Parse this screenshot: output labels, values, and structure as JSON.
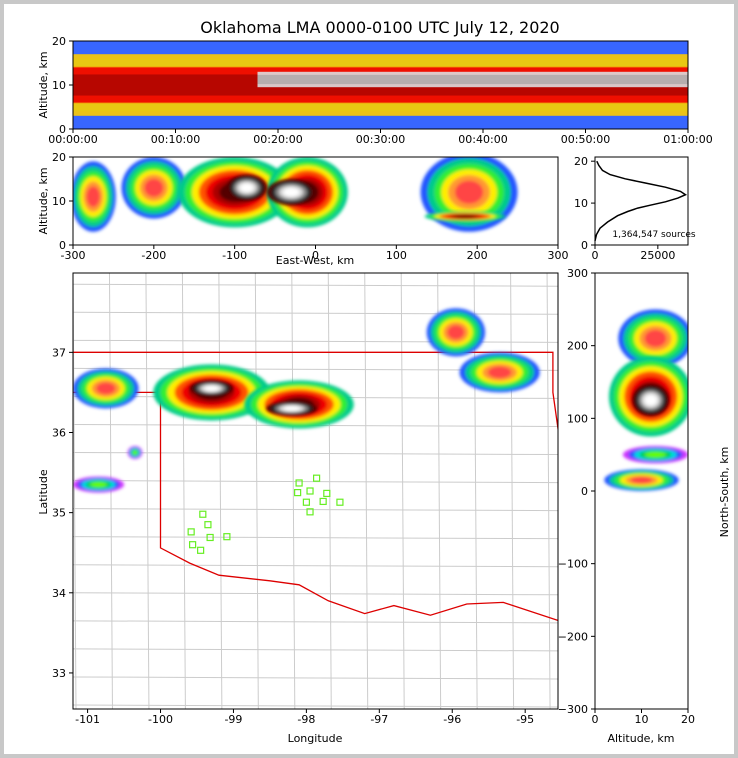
{
  "chart_data": [
    {
      "panel": "altitude-vs-time",
      "type": "heatmap",
      "title": "Oklahoma LMA 0000-0100 UTC July 12, 2020",
      "xlabel": "",
      "ylabel": "Altitude, km",
      "x_ticks": [
        "00:00:00",
        "00:10:00",
        "00:20:00",
        "00:30:00",
        "00:40:00",
        "00:50:00",
        "01:00:00"
      ],
      "y_ticks": [
        "0",
        "10",
        "20"
      ],
      "ylim": [
        0,
        20
      ],
      "bands": [
        {
          "ymin": 0,
          "ymax": 20,
          "level": "low"
        },
        {
          "ymin": 3,
          "ymax": 17,
          "level": "medium"
        },
        {
          "ymin": 6,
          "ymax": 14,
          "level": "high"
        },
        {
          "ymin": 9.5,
          "ymax": 13,
          "level": "peak",
          "from_time_frac": 0.3
        }
      ]
    },
    {
      "panel": "altitude-vs-east-west",
      "type": "heatmap",
      "xlabel": "East-West, km",
      "ylabel": "Altitude, km",
      "x_ticks": [
        "-300",
        "-200",
        "-100",
        "0",
        "100",
        "200",
        "300"
      ],
      "y_ticks": [
        "0",
        "10",
        "20"
      ],
      "xlim": [
        -300,
        300
      ],
      "ylim": [
        0,
        20
      ],
      "cells": [
        {
          "x": -275,
          "y": 11,
          "rx": 28,
          "ry": 8,
          "level": "medium"
        },
        {
          "x": -200,
          "y": 13,
          "rx": 40,
          "ry": 7,
          "level": "medium"
        },
        {
          "x": -100,
          "y": 12,
          "rx": 70,
          "ry": 8,
          "level": "high"
        },
        {
          "x": -10,
          "y": 12,
          "rx": 50,
          "ry": 8,
          "level": "high"
        },
        {
          "x": -85,
          "y": 13,
          "rx": 25,
          "ry": 3,
          "level": "peak"
        },
        {
          "x": -30,
          "y": 12,
          "rx": 30,
          "ry": 3,
          "level": "peak"
        },
        {
          "x": 190,
          "y": 12,
          "rx": 60,
          "ry": 9,
          "level": "medium"
        },
        {
          "x": 185,
          "y": 6.5,
          "rx": 50,
          "ry": 1.2,
          "level": "high"
        }
      ]
    },
    {
      "panel": "source-count-vs-altitude",
      "type": "line",
      "x_ticks": [
        "0",
        "25000"
      ],
      "y_ticks": [
        "0",
        "10",
        "20"
      ],
      "xlim": [
        0,
        37000
      ],
      "ylim": [
        0,
        21
      ],
      "annotation": "1,364,547 sources",
      "x": [
        0,
        600,
        2000,
        5000,
        9000,
        13000,
        17000,
        22000,
        28000,
        33000,
        36000,
        34000,
        28000,
        20000,
        12000,
        6000,
        3000,
        1500,
        700
      ],
      "y": [
        1,
        2.5,
        4,
        5.5,
        7,
        8,
        8.8,
        9.5,
        10.3,
        11.2,
        12,
        12.8,
        13.8,
        14.8,
        15.8,
        16.8,
        17.8,
        19,
        20
      ]
    },
    {
      "panel": "plan-view-map",
      "type": "heatmap",
      "xlabel": "Longitude",
      "ylabel": "Latitude",
      "x_ticks": [
        "-101",
        "-100",
        "-99",
        "-98",
        "-97",
        "-96",
        "-95"
      ],
      "y_ticks": [
        "33",
        "34",
        "35",
        "36",
        "37"
      ],
      "xlim": [
        -101.2,
        -94.55
      ],
      "ylim": [
        32.55,
        37.99
      ],
      "cells": [
        {
          "x": -100.75,
          "y": 36.55,
          "rx": 0.45,
          "ry": 0.25,
          "level": "medium"
        },
        {
          "x": -99.3,
          "y": 36.5,
          "rx": 0.8,
          "ry": 0.35,
          "level": "high"
        },
        {
          "x": -98.1,
          "y": 36.35,
          "rx": 0.75,
          "ry": 0.3,
          "level": "high"
        },
        {
          "x": -99.3,
          "y": 36.55,
          "rx": 0.3,
          "ry": 0.1,
          "level": "peak"
        },
        {
          "x": -98.2,
          "y": 36.3,
          "rx": 0.35,
          "ry": 0.09,
          "level": "peak"
        },
        {
          "x": -95.95,
          "y": 37.25,
          "rx": 0.4,
          "ry": 0.3,
          "level": "medium"
        },
        {
          "x": -95.35,
          "y": 36.75,
          "rx": 0.55,
          "ry": 0.25,
          "level": "medium"
        },
        {
          "x": -100.85,
          "y": 35.35,
          "rx": 0.35,
          "ry": 0.1,
          "level": "low"
        },
        {
          "x": -100.35,
          "y": 35.75,
          "rx": 0.1,
          "ry": 0.08,
          "level": "low"
        }
      ],
      "stations": [
        {
          "lon": -99.42,
          "lat": 34.98
        },
        {
          "lon": -99.35,
          "lat": 34.85
        },
        {
          "lon": -99.58,
          "lat": 34.76
        },
        {
          "lon": -99.32,
          "lat": 34.69
        },
        {
          "lon": -99.56,
          "lat": 34.6
        },
        {
          "lon": -99.45,
          "lat": 34.53
        },
        {
          "lon": -99.09,
          "lat": 34.7
        },
        {
          "lon": -98.1,
          "lat": 35.37
        },
        {
          "lon": -97.86,
          "lat": 35.43
        },
        {
          "lon": -98.12,
          "lat": 35.25
        },
        {
          "lon": -97.95,
          "lat": 35.27
        },
        {
          "lon": -97.72,
          "lat": 35.24
        },
        {
          "lon": -98.0,
          "lat": 35.13
        },
        {
          "lon": -97.77,
          "lat": 35.14
        },
        {
          "lon": -97.54,
          "lat": 35.13
        },
        {
          "lon": -97.95,
          "lat": 35.01
        }
      ]
    },
    {
      "panel": "north-south-vs-altitude",
      "type": "heatmap",
      "xlabel": "Altitude, km",
      "ylabel": "North-South, km",
      "x_ticks": [
        "0",
        "10",
        "20"
      ],
      "y_ticks": [
        "300",
        "200",
        "100",
        "0",
        "−100",
        "−200",
        "−300"
      ],
      "xlim": [
        0,
        20
      ],
      "ylim": [
        -300,
        300
      ],
      "cells": [
        {
          "x": 13,
          "y": 210,
          "rx": 8,
          "ry": 40,
          "level": "medium"
        },
        {
          "x": 12,
          "y": 130,
          "rx": 9,
          "ry": 55,
          "level": "high"
        },
        {
          "x": 12,
          "y": 125,
          "rx": 4,
          "ry": 22,
          "level": "peak"
        },
        {
          "x": 10,
          "y": 15,
          "rx": 8,
          "ry": 15,
          "level": "medium"
        },
        {
          "x": 13,
          "y": 50,
          "rx": 7,
          "ry": 12,
          "level": "low"
        }
      ]
    }
  ]
}
